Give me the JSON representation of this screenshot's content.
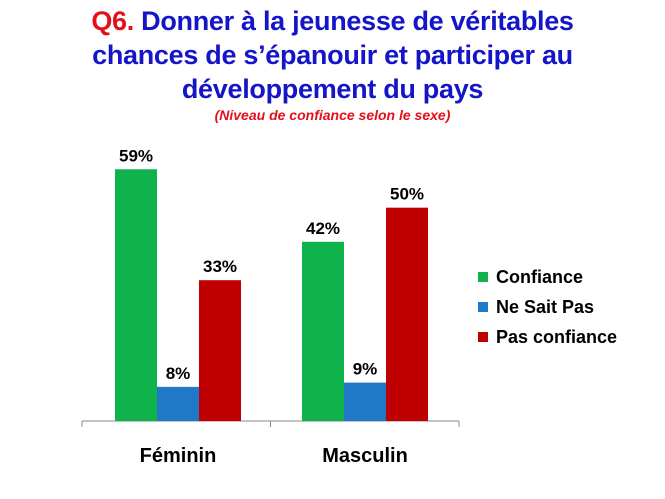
{
  "chart_data": {
    "type": "bar",
    "title_prefix": "Q6.",
    "title_lines": [
      "Donner à la jeunesse de véritables",
      "chances de s’épanouir et participer au",
      "développement du pays"
    ],
    "subtitle": "(Niveau de confiance selon le sexe)",
    "categories": [
      "Féminin",
      "Masculin"
    ],
    "series": [
      {
        "name": "Confiance",
        "values": [
          59,
          42
        ],
        "labels": [
          "59%",
          "42%"
        ],
        "color": "#10b24b"
      },
      {
        "name": "Ne Sait Pas",
        "values": [
          8,
          9
        ],
        "labels": [
          "8%",
          "9%"
        ],
        "color": "#1f78c8"
      },
      {
        "name": "Pas confiance",
        "values": [
          33,
          50
        ],
        "labels": [
          "33%",
          "50%"
        ],
        "color": "#c00000"
      }
    ],
    "ylim": [
      0,
      60
    ],
    "xlabel": "",
    "ylabel": "",
    "grid": false,
    "legend_position": "right"
  }
}
